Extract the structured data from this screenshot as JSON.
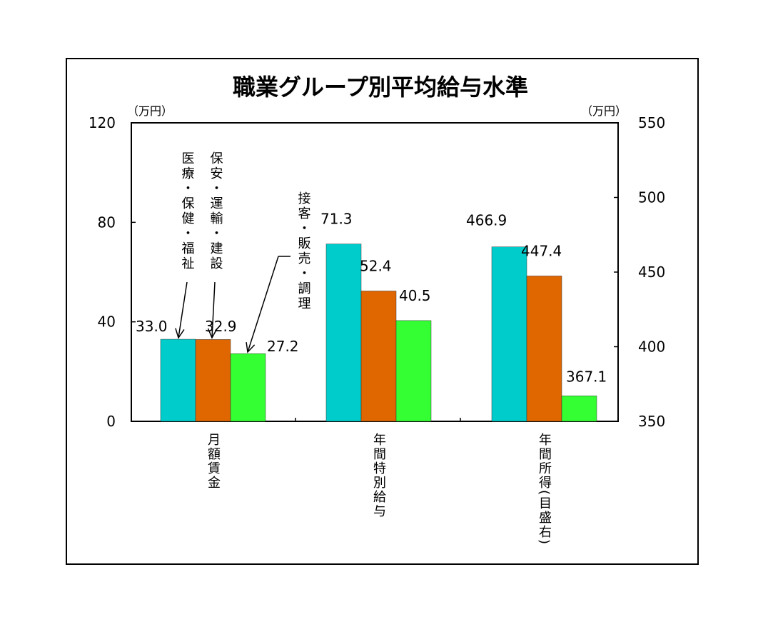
{
  "chart_data": {
    "type": "bar",
    "title": "職業グループ別平均給与水準",
    "left_unit": "（万円）",
    "right_unit": "（万円）",
    "categories": [
      "月額賃金",
      "年間特別給与",
      "年間所得(目盛右)"
    ],
    "category_axis": [
      "left",
      "left",
      "right"
    ],
    "series": [
      {
        "name": "医療・保健・福祉",
        "color": "#00CCCC",
        "values": [
          33.0,
          71.3,
          466.9
        ]
      },
      {
        "name": "保安・運輸・建設",
        "color": "#E06600",
        "values": [
          32.9,
          52.4,
          447.4
        ]
      },
      {
        "name": "接客・販売・調理",
        "color": "#33FF33",
        "values": [
          27.2,
          40.5,
          367.1
        ]
      }
    ],
    "value_labels": [
      [
        "33.0",
        "71.3",
        "466.9"
      ],
      [
        "32.9",
        "52.4",
        "447.4"
      ],
      [
        "27.2",
        "40.5",
        "367.1"
      ]
    ],
    "ylim_left": [
      0,
      120
    ],
    "yticks_left": [
      "0",
      "40",
      "80",
      "120"
    ],
    "ylim_right": [
      350,
      550
    ],
    "yticks_right": [
      "350",
      "400",
      "450",
      "500",
      "550"
    ],
    "grid": false,
    "legend": "annotations with arrows on first category"
  }
}
